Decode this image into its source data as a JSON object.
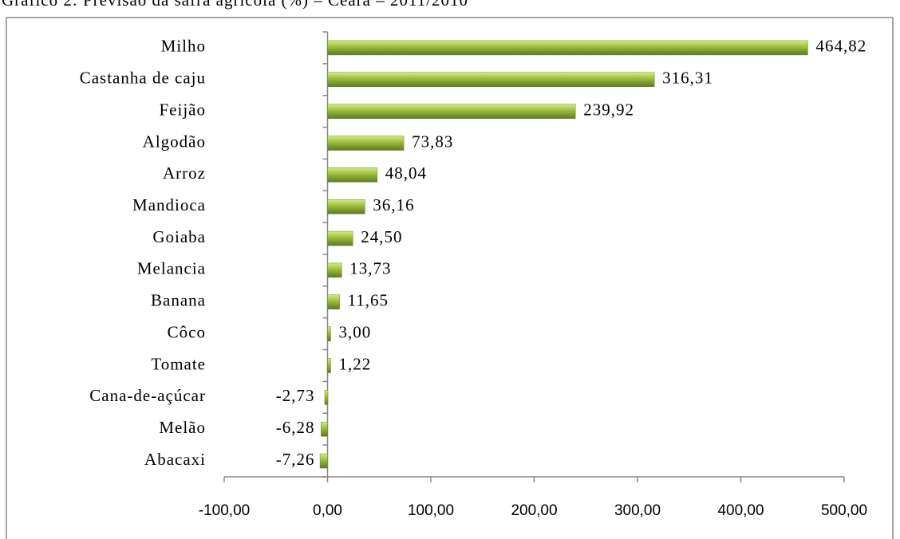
{
  "chart_data": {
    "type": "bar",
    "orientation": "horizontal",
    "title": "Gráfico 2: Previsão da safra agrícola (%) – Ceará – 2011/2010",
    "categories": [
      "Milho",
      "Castanha de caju",
      "Feijão",
      "Algodão",
      "Arroz",
      "Mandioca",
      "Goiaba",
      "Melancia",
      "Banana",
      "Côco",
      "Tomate",
      "Cana-de-açúcar",
      "Melão",
      "Abacaxi"
    ],
    "values": [
      464.82,
      316.31,
      239.92,
      73.83,
      48.04,
      36.16,
      24.5,
      13.73,
      11.65,
      3.0,
      1.22,
      -2.73,
      -6.28,
      -7.26
    ],
    "value_labels": [
      "464,82",
      "316,31",
      "239,92",
      "73,83",
      "48,04",
      "36,16",
      "24,50",
      "13,73",
      "11,65",
      "3,00",
      "1,22",
      "-2,73",
      "-6,28",
      "-7,26"
    ],
    "color": "#9bbb3c",
    "xlim": [
      -100,
      500
    ],
    "xticks": [
      {
        "value": -100,
        "label": "-100,00"
      },
      {
        "value": 0,
        "label": "0,00"
      },
      {
        "value": 100,
        "label": "100,00"
      },
      {
        "value": 200,
        "label": "200,00"
      },
      {
        "value": 300,
        "label": "300,00"
      },
      {
        "value": 400,
        "label": "400,00"
      },
      {
        "value": 500,
        "label": "500,00"
      }
    ],
    "grid": false
  }
}
